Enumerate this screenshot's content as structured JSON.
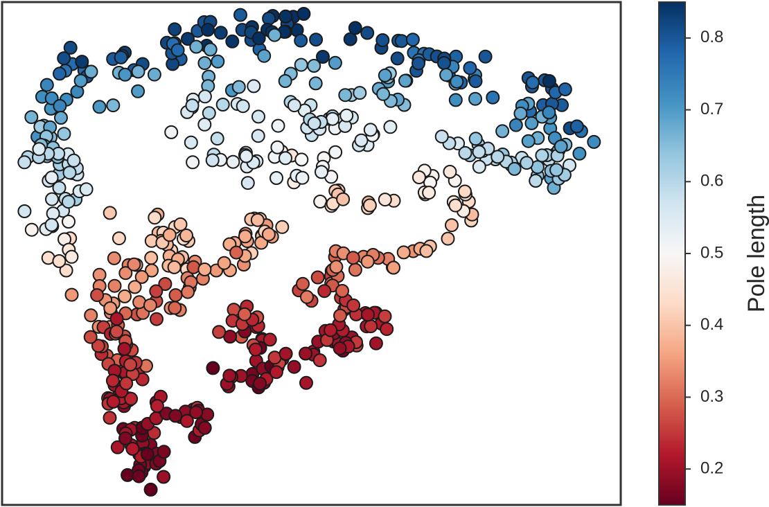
{
  "chart_data": {
    "type": "scatter",
    "title": "",
    "xlabel": "",
    "ylabel": "",
    "axes_ticks": "none",
    "grid": false,
    "legend": "none",
    "point_count": 640,
    "xlim": [
      0,
      1
    ],
    "ylim": [
      0,
      1
    ],
    "colorbar": {
      "label": "Pole length",
      "placement": "right",
      "range": [
        0.15,
        0.85
      ],
      "ticks": [
        0.2,
        0.3,
        0.4,
        0.5,
        0.6,
        0.7,
        0.8
      ],
      "tick_labels": [
        "0.2",
        "0.3",
        "0.4",
        "0.5",
        "0.6",
        "0.7",
        "0.8"
      ],
      "colormap": "RdBu",
      "colormap_stops": [
        "#67001f",
        "#b2182b",
        "#d6604d",
        "#f4a582",
        "#fddbc7",
        "#f7f7f7",
        "#d1e5f0",
        "#92c5de",
        "#4393c3",
        "#2166ac",
        "#053061"
      ]
    },
    "marker_edge_color": "#1a1a1a",
    "frame_color": "#333333"
  }
}
